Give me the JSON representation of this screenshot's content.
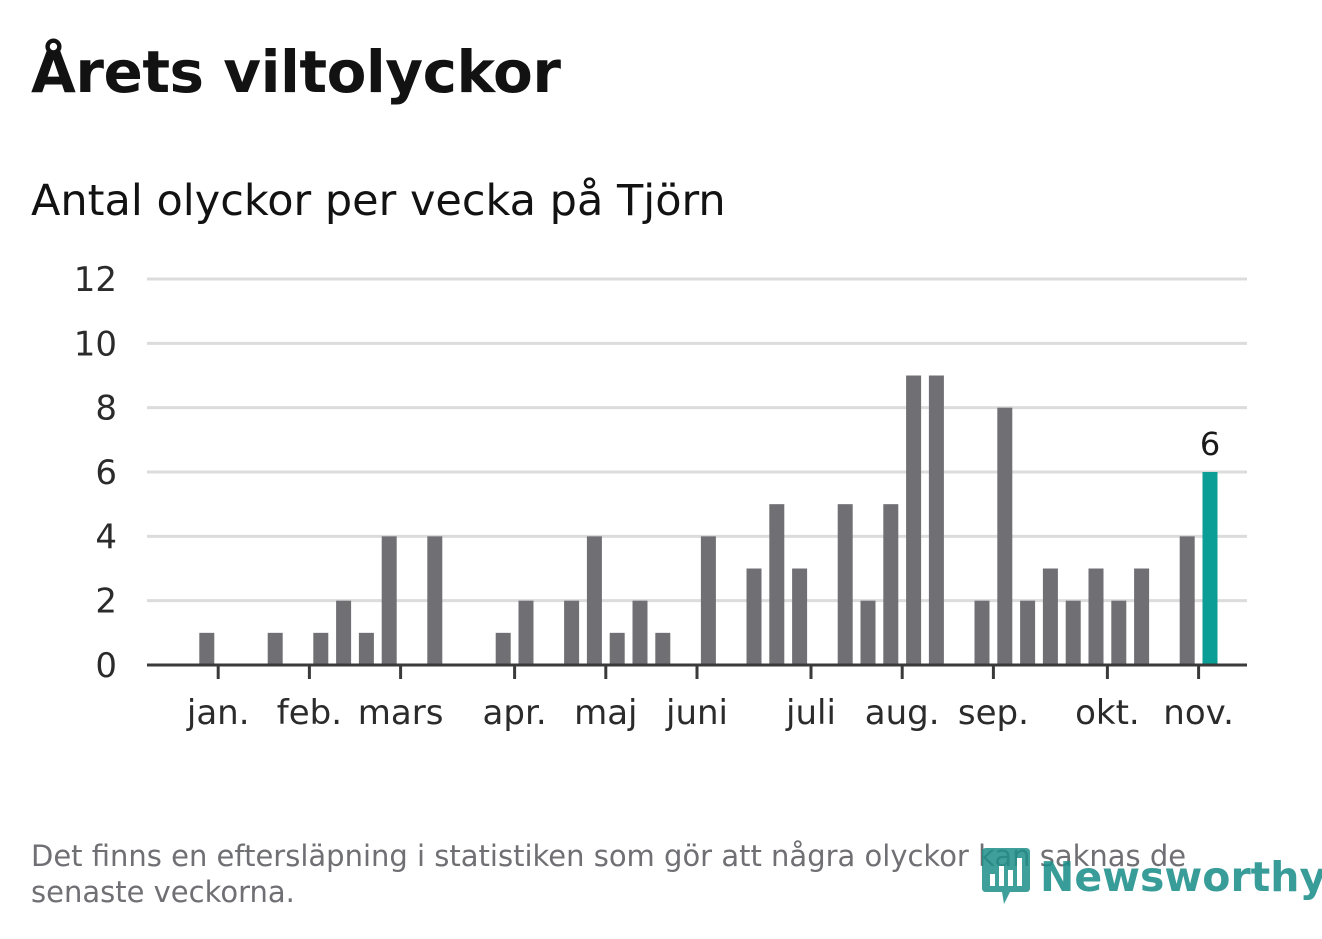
{
  "title": "Årets viltolyckor",
  "subtitle": "Antal olyckor per vecka på Tjörn",
  "footnote": "Det finns en eftersläpning i statistiken som gör att några olyckor kan saknas de senaste veckorna.",
  "logo": {
    "text": "Newsworthy",
    "icon": "bar-chart-icon"
  },
  "colors": {
    "bar": "#707074",
    "highlight": "#0a9e96",
    "grid": "#dcdcdc",
    "axis": "#3a3a3a"
  },
  "chart_data": {
    "type": "bar",
    "title": "Antal olyckor per vecka på Tjörn",
    "xlabel": "",
    "ylabel": "",
    "ylim": [
      0,
      12
    ],
    "yticks": [
      "0",
      "2",
      "4",
      "6",
      "8",
      "10",
      "12"
    ],
    "week_count": 46,
    "values": [
      0,
      1,
      0,
      0,
      1,
      0,
      1,
      2,
      1,
      4,
      0,
      4,
      0,
      0,
      1,
      2,
      0,
      2,
      4,
      1,
      2,
      1,
      0,
      4,
      0,
      3,
      5,
      3,
      0,
      5,
      2,
      5,
      9,
      9,
      0,
      2,
      8,
      2,
      3,
      2,
      3,
      2,
      3,
      0,
      4,
      6
    ],
    "highlight_index": 45,
    "highlight_label": "6",
    "months": [
      {
        "label": "jan.",
        "week": 1.5
      },
      {
        "label": "feb.",
        "week": 5.5
      },
      {
        "label": "mars",
        "week": 9.5
      },
      {
        "label": "apr.",
        "week": 14.5
      },
      {
        "label": "maj",
        "week": 18.5
      },
      {
        "label": "juni",
        "week": 22.5
      },
      {
        "label": "juli",
        "week": 27.5
      },
      {
        "label": "aug.",
        "week": 31.5
      },
      {
        "label": "sep.",
        "week": 35.5
      },
      {
        "label": "okt.",
        "week": 40.5
      },
      {
        "label": "nov.",
        "week": 44.5
      }
    ]
  }
}
